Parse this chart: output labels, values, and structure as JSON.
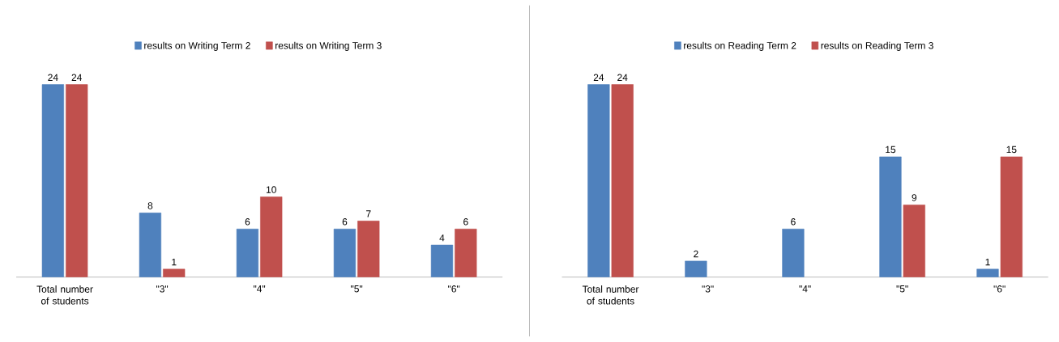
{
  "chart_data": [
    {
      "type": "bar",
      "categories": [
        "Total number of students",
        "\"3\"",
        "\"4\"",
        "\"5\"",
        "\"6\""
      ],
      "series": [
        {
          "name": "results on Writing Term 2",
          "color": "#4f81bd",
          "values": [
            24,
            8,
            6,
            6,
            4
          ]
        },
        {
          "name": "results on Writing Term 3",
          "color": "#c0504d",
          "values": [
            24,
            1,
            10,
            7,
            6
          ]
        }
      ],
      "data_labels": true,
      "legend": "top",
      "tick_labels": "x"
    },
    {
      "type": "bar",
      "categories": [
        "Total number of students",
        "\"3\"",
        "\"4\"",
        "\"5\"",
        "\"6\""
      ],
      "series": [
        {
          "name": "results on Reading Term 2",
          "color": "#4f81bd",
          "values": [
            24,
            2,
            6,
            15,
            1
          ]
        },
        {
          "name": "results on Reading Term 3",
          "color": "#c0504d",
          "values": [
            24,
            null,
            null,
            9,
            15
          ]
        }
      ],
      "data_labels": true,
      "legend": "top",
      "tick_labels": "x"
    }
  ]
}
